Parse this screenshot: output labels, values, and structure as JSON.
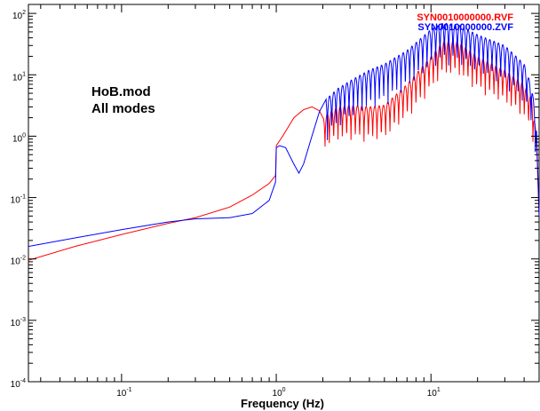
{
  "chart_data": {
    "type": "line",
    "title": "",
    "xlabel": "Frequency (Hz)",
    "ylabel": "",
    "xscale": "log",
    "yscale": "log",
    "xlim": [
      0.025,
      50
    ],
    "ylim": [
      0.0001,
      140
    ],
    "x_ticks": [
      {
        "value": 0.1,
        "base": "10",
        "exp": "-1"
      },
      {
        "value": 1,
        "base": "10",
        "exp": "0"
      },
      {
        "value": 10,
        "base": "10",
        "exp": "1"
      }
    ],
    "y_ticks": [
      {
        "value": 0.0001,
        "base": "10",
        "exp": "-4"
      },
      {
        "value": 0.001,
        "base": "10",
        "exp": "-3"
      },
      {
        "value": 0.01,
        "base": "10",
        "exp": "-2"
      },
      {
        "value": 0.1,
        "base": "10",
        "exp": "-1"
      },
      {
        "value": 1,
        "base": "10",
        "exp": "0"
      },
      {
        "value": 10,
        "base": "10",
        "exp": "1"
      },
      {
        "value": 100,
        "base": "10",
        "exp": "2"
      }
    ],
    "annotations": [
      "HoB.mod",
      "All modes"
    ],
    "grid": false,
    "legend_position": "top-right",
    "series": [
      {
        "name": "SYN0010000000.RVF",
        "color": "#ff0000",
        "x": [
          0.025,
          0.05,
          0.1,
          0.2,
          0.3,
          0.5,
          0.7,
          0.9,
          0.99,
          1.0,
          1.1,
          1.3,
          1.5,
          1.7,
          1.9,
          2.0,
          2.2,
          2.5,
          3.0,
          4.0,
          5.0,
          7.0,
          10.0,
          12.0,
          15.0,
          20.0,
          30.0,
          40.0,
          45.0,
          48.0,
          50.0
        ],
        "y": [
          0.0095,
          0.016,
          0.025,
          0.038,
          0.047,
          0.07,
          0.11,
          0.17,
          0.23,
          0.7,
          1.0,
          2.0,
          2.7,
          3.0,
          2.6,
          2.0,
          2.5,
          3.0,
          3.2,
          3.0,
          3.2,
          7.0,
          20.0,
          35.0,
          35.0,
          20.0,
          12.0,
          7.0,
          4.0,
          1.0,
          0.05
        ],
        "fine_structure": {
          "type": "resonance_peaks",
          "start_hz": 2.0,
          "end_hz": 48.0,
          "spacing_log10": 0.028,
          "dip_fraction": 0.25
        }
      },
      {
        "name": "SYN0010000000.ZVF",
        "color": "#0000ff",
        "x": [
          0.025,
          0.05,
          0.1,
          0.2,
          0.3,
          0.5,
          0.7,
          0.9,
          0.99,
          1.0,
          1.05,
          1.15,
          1.3,
          1.4,
          1.5,
          1.7,
          1.9,
          2.1,
          2.5,
          3.0,
          4.0,
          5.0,
          7.0,
          10.0,
          12.0,
          15.0,
          20.0,
          30.0,
          40.0,
          45.0,
          48.0,
          50.0
        ],
        "y": [
          0.016,
          0.022,
          0.03,
          0.04,
          0.045,
          0.047,
          0.055,
          0.09,
          0.18,
          0.65,
          0.7,
          0.65,
          0.35,
          0.25,
          0.35,
          1.0,
          2.5,
          4.0,
          6.0,
          8.0,
          12.0,
          15.0,
          25.0,
          55.0,
          70.0,
          65.0,
          45.0,
          30.0,
          15.0,
          6.0,
          1.5,
          0.05
        ],
        "fine_structure": {
          "type": "resonance_peaks",
          "start_hz": 2.1,
          "end_hz": 48.0,
          "spacing_log10": 0.028,
          "dip_fraction": 0.2
        }
      }
    ]
  }
}
